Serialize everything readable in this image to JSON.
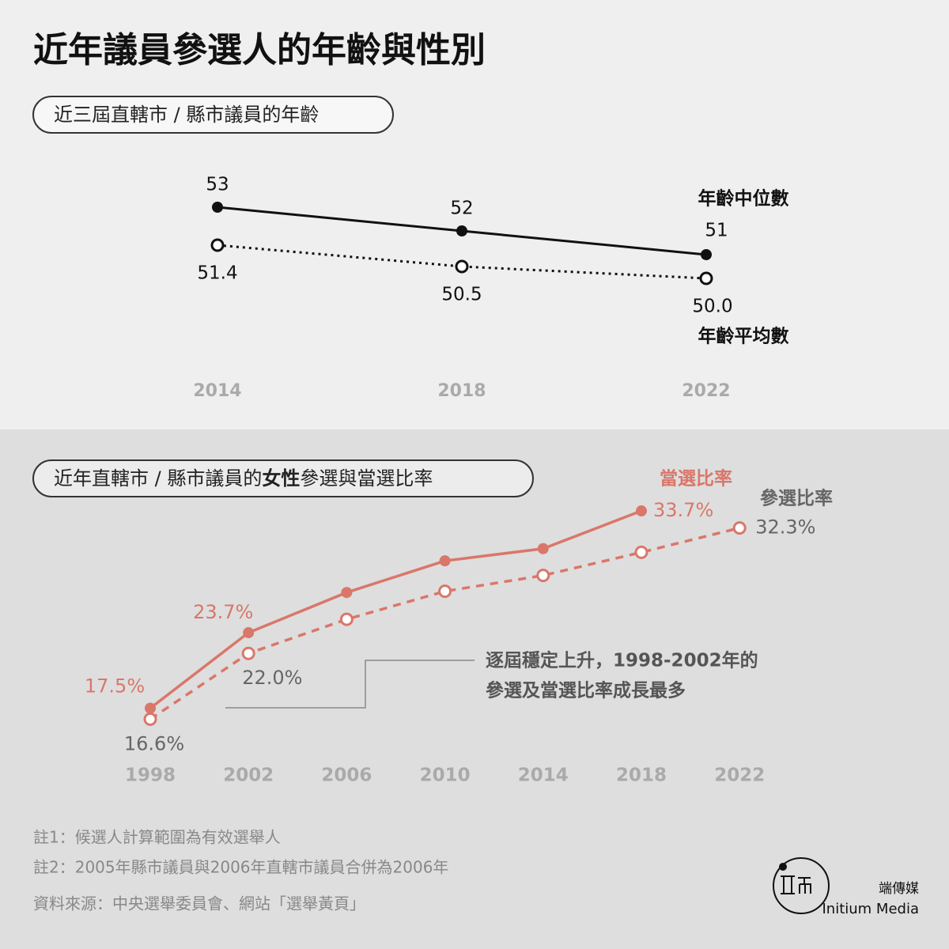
{
  "title": "近年議員參選人的年齡與性別",
  "chart_data": [
    {
      "type": "line",
      "title": "近三屆直轄市 / 縣市議員的年齡",
      "categories": [
        "2014",
        "2018",
        "2022"
      ],
      "ylim": [
        49,
        54
      ],
      "series": [
        {
          "name": "年齡中位數",
          "color": "#111111",
          "style": "solid",
          "marker": "filled",
          "values": [
            53,
            52,
            51
          ],
          "value_labels": [
            "53",
            "52",
            "51"
          ]
        },
        {
          "name": "年齡平均數",
          "color": "#111111",
          "style": "dotted",
          "marker": "open",
          "values": [
            51.4,
            50.5,
            50.0
          ],
          "value_labels": [
            "51.4",
            "50.5",
            "50.0"
          ]
        }
      ]
    },
    {
      "type": "line",
      "title_parts": [
        "近年直轄市 / 縣市議員的",
        "女性",
        "參選與當選比率"
      ],
      "categories": [
        "1998",
        "2002",
        "2006",
        "2010",
        "2014",
        "2018",
        "2022"
      ],
      "ylim": [
        15,
        35
      ],
      "series": [
        {
          "name": "當選比率",
          "color": "#d9776a",
          "label_color": "#d9776a",
          "style": "solid",
          "marker": "filled",
          "values": [
            17.5,
            23.7,
            27.0,
            29.6,
            30.6,
            33.7,
            null
          ],
          "value_labels": [
            "17.5%",
            "23.7%",
            null,
            null,
            null,
            "33.7%",
            null
          ]
        },
        {
          "name": "參選比率",
          "color": "#d9776a",
          "label_color": "#666666",
          "style": "dashed",
          "marker": "open",
          "values": [
            16.6,
            22.0,
            24.8,
            27.1,
            28.4,
            30.3,
            32.3
          ],
          "value_labels": [
            "16.6%",
            "22.0%",
            null,
            null,
            null,
            null,
            "32.3%"
          ]
        }
      ],
      "annotation": [
        "逐屆穩定上升，1998-2002年的",
        "參選及當選比率成長最多"
      ]
    }
  ],
  "notes": [
    "註1：候選人計算範圍為有效選舉人",
    "註2：2005年縣市議員與2006年直轄市議員合併為2006年",
    "資料來源：中央選舉委員會、網站「選舉黃頁」"
  ],
  "brand": {
    "name_zh": "端傳媒",
    "name_en": "Initium Media"
  }
}
